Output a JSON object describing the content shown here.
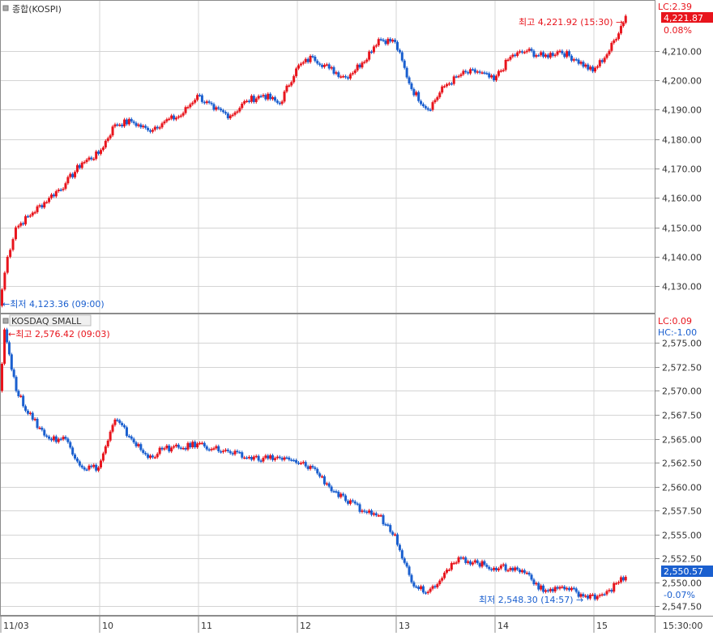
{
  "colors": {
    "up": "#e8141c",
    "down": "#1a5fcf",
    "grid": "#d4d4d4",
    "frame": "#8c8c8c",
    "text": "#333333"
  },
  "x_axis": {
    "ticks": [
      "11/03",
      "10",
      "11",
      "12",
      "13",
      "14",
      "15"
    ],
    "end_label": "15:30:00"
  },
  "chart_data": [
    {
      "type": "candlestick",
      "title": "종합(KOSPI)",
      "x_hours": [
        9.0,
        9.083,
        9.167,
        9.333,
        9.5,
        9.667,
        9.833,
        10.0,
        10.167,
        10.333,
        10.5,
        10.667,
        10.833,
        11.0,
        11.167,
        11.333,
        11.5,
        11.667,
        11.833,
        12.0,
        12.167,
        12.333,
        12.5,
        12.667,
        12.833,
        13.0,
        13.167,
        13.333,
        13.5,
        13.667,
        13.833,
        14.0,
        14.167,
        14.333,
        14.5,
        14.667,
        14.833,
        15.0,
        15.167,
        15.333
      ],
      "values": [
        4123.36,
        4140,
        4150,
        4155,
        4160,
        4165,
        4172,
        4175,
        4185,
        4186,
        4183,
        4186,
        4188,
        4195,
        4190,
        4188,
        4193,
        4195,
        4192,
        4204,
        4208,
        4204,
        4201,
        4206,
        4214,
        4213,
        4197,
        4190,
        4198,
        4202,
        4203,
        4200,
        4208,
        4210,
        4208,
        4210,
        4207,
        4203,
        4210,
        4221.87
      ],
      "y_ticks": [
        4130,
        4140,
        4150,
        4160,
        4170,
        4180,
        4190,
        4200,
        4210
      ],
      "y_tick_labels": [
        "4,130.00",
        "4,140.00",
        "4,150.00",
        "4,160.00",
        "4,170.00",
        "4,180.00",
        "4,190.00",
        "4,200.00",
        "4,210.00"
      ],
      "ylim": [
        4121,
        4227
      ],
      "lc_label": "LC:2.39",
      "current_value": "4,221.87",
      "change_pct": "0.08%",
      "current_color": "#e8141c",
      "high_annotation": "최고 4,221.92 (15:30) →",
      "low_annotation": "←최저 4,123.36 (09:00)"
    },
    {
      "type": "candlestick",
      "title": "KOSDAQ SMALL",
      "x_hours": [
        9.0,
        9.05,
        9.167,
        9.333,
        9.5,
        9.667,
        9.833,
        10.0,
        10.167,
        10.333,
        10.5,
        10.667,
        10.833,
        11.0,
        11.167,
        11.333,
        11.5,
        11.667,
        11.833,
        12.0,
        12.167,
        12.333,
        12.5,
        12.667,
        12.833,
        13.0,
        13.167,
        13.333,
        13.5,
        13.667,
        13.833,
        14.0,
        14.167,
        14.333,
        14.5,
        14.667,
        14.833,
        14.95,
        15.167,
        15.333
      ],
      "values": [
        2570,
        2576.42,
        2570,
        2567,
        2565,
        2565,
        2562,
        2562,
        2567,
        2565,
        2563,
        2564,
        2564,
        2564.5,
        2564,
        2563.5,
        2563,
        2563,
        2563,
        2562.5,
        2562,
        2560,
        2558.5,
        2557.5,
        2557,
        2555,
        2550,
        2549,
        2551,
        2552.5,
        2552,
        2551.5,
        2551.5,
        2551,
        2549,
        2549.5,
        2549,
        2548.3,
        2549.2,
        2550.57
      ],
      "y_ticks": [
        2547.5,
        2550,
        2552.5,
        2555,
        2557.5,
        2560,
        2562.5,
        2565,
        2567.5,
        2570,
        2572.5,
        2575
      ],
      "y_tick_labels": [
        "2,547.50",
        "2,550.00",
        "2,552.50",
        "2,555.00",
        "2,557.50",
        "2,560.00",
        "2,562.50",
        "2,565.00",
        "2,567.50",
        "2,570.00",
        "2,572.50",
        "2,575.00"
      ],
      "ylim": [
        2546.5,
        2578
      ],
      "lc_label": "LC:0.09",
      "hc_label": "HC:-1.00",
      "current_value": "2,550.57",
      "change_pct": "-0.07%",
      "current_color": "#1a5fcf",
      "high_annotation": "←최고 2,576.42 (09:03)",
      "low_annotation": "최저 2,548.30 (14:57) →"
    }
  ]
}
